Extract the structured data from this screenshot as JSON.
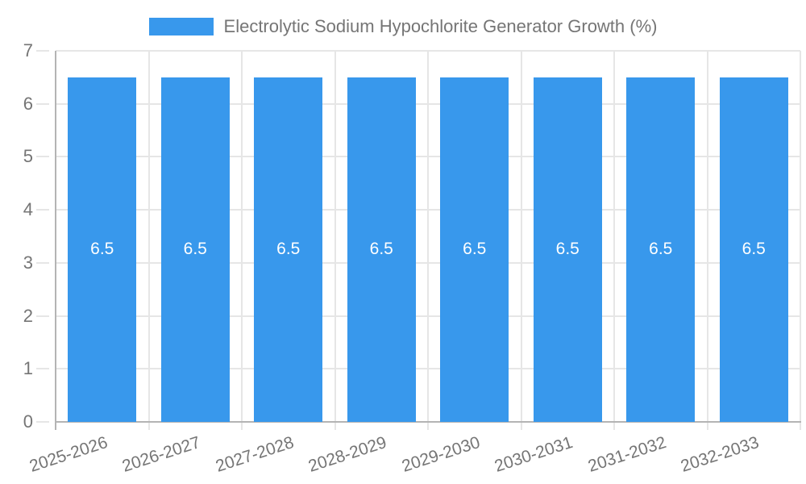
{
  "legend": {
    "label": "Electrolytic Sodium Hypochlorite Generator Growth (%)"
  },
  "chart_data": {
    "type": "bar",
    "title": "Electrolytic Sodium Hypochlorite Generator Growth (%)",
    "categories": [
      "2025-2026",
      "2026-2027",
      "2027-2028",
      "2028-2029",
      "2029-2030",
      "2030-2031",
      "2031-2032",
      "2032-2033"
    ],
    "series": [
      {
        "name": "Electrolytic Sodium Hypochlorite Generator Growth (%)",
        "values": [
          6.5,
          6.5,
          6.5,
          6.5,
          6.5,
          6.5,
          6.5,
          6.5
        ]
      }
    ],
    "bar_value_labels": [
      "6.5",
      "6.5",
      "6.5",
      "6.5",
      "6.5",
      "6.5",
      "6.5",
      "6.5"
    ],
    "xlabel": "",
    "ylabel": "",
    "ylim": [
      0,
      7
    ],
    "yticks": [
      0,
      1,
      2,
      3,
      4,
      5,
      6,
      7
    ],
    "grid": true,
    "legend_position": "top",
    "colors": {
      "bar": "#3898ec",
      "bar_label": "#ffffff",
      "grid": "#e6e6e6",
      "axis": "#b4b4b4",
      "text": "#757575",
      "background": "#ffffff"
    }
  }
}
